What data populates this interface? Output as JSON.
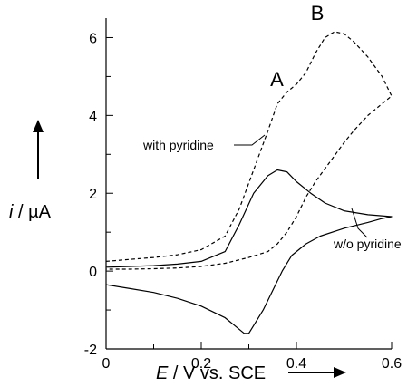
{
  "chart_data": {
    "type": "line",
    "xlabel_italic": "E",
    "xlabel_rest": " / V vs. SCE",
    "ylabel_italic": "i",
    "ylabel_rest": " / µA",
    "xlim": [
      0,
      0.6
    ],
    "ylim": [
      -2,
      6.5
    ],
    "xticks": [
      0,
      0.2,
      0.4,
      0.6
    ],
    "xtick_labels": [
      "0",
      "0.2",
      "0.4",
      "0.6"
    ],
    "yticks": [
      -2,
      0,
      2,
      4,
      6
    ],
    "ytick_labels": [
      "-2",
      "0",
      "2",
      "4",
      "6"
    ],
    "grid": false,
    "series": [
      {
        "name": "w/o pyridine",
        "style": "solid",
        "color": "#000000",
        "x": [
          0.0,
          0.05,
          0.1,
          0.15,
          0.2,
          0.25,
          0.28,
          0.31,
          0.34,
          0.36,
          0.38,
          0.4,
          0.43,
          0.46,
          0.5,
          0.55,
          0.6,
          0.58,
          0.55,
          0.5,
          0.45,
          0.42,
          0.39,
          0.37,
          0.35,
          0.33,
          0.31,
          0.3,
          0.29,
          0.27,
          0.25,
          0.2,
          0.15,
          0.1,
          0.05,
          0.0
        ],
        "y": [
          0.1,
          0.12,
          0.14,
          0.18,
          0.25,
          0.5,
          1.2,
          2.0,
          2.45,
          2.6,
          2.55,
          2.3,
          2.0,
          1.75,
          1.55,
          1.45,
          1.4,
          1.35,
          1.25,
          1.1,
          0.9,
          0.7,
          0.4,
          0.0,
          -0.5,
          -1.0,
          -1.4,
          -1.6,
          -1.6,
          -1.4,
          -1.2,
          -0.9,
          -0.7,
          -0.55,
          -0.45,
          -0.35
        ]
      },
      {
        "name": "with pyridine",
        "style": "dashed",
        "color": "#000000",
        "x": [
          0.0,
          0.05,
          0.1,
          0.15,
          0.2,
          0.25,
          0.28,
          0.31,
          0.34,
          0.36,
          0.38,
          0.4,
          0.42,
          0.44,
          0.46,
          0.48,
          0.5,
          0.52,
          0.55,
          0.58,
          0.6,
          0.58,
          0.55,
          0.52,
          0.5,
          0.47,
          0.44,
          0.42,
          0.4,
          0.38,
          0.36,
          0.34,
          0.3,
          0.25,
          0.2,
          0.15,
          0.1,
          0.05,
          0.0
        ],
        "y": [
          0.25,
          0.3,
          0.35,
          0.42,
          0.55,
          0.9,
          1.6,
          2.6,
          3.6,
          4.3,
          4.6,
          4.8,
          5.1,
          5.6,
          6.0,
          6.15,
          6.1,
          5.9,
          5.5,
          5.0,
          4.5,
          4.3,
          4.0,
          3.6,
          3.3,
          2.8,
          2.3,
          1.9,
          1.4,
          1.0,
          0.7,
          0.5,
          0.35,
          0.2,
          0.12,
          0.08,
          0.06,
          0.05,
          0.05
        ]
      }
    ],
    "annotations": [
      {
        "text": "A",
        "x": 0.345,
        "y": 4.75
      },
      {
        "text": "B",
        "x": 0.43,
        "y": 6.45
      },
      {
        "text": "with pyridine"
      },
      {
        "text": "w/o pyridine"
      }
    ]
  }
}
